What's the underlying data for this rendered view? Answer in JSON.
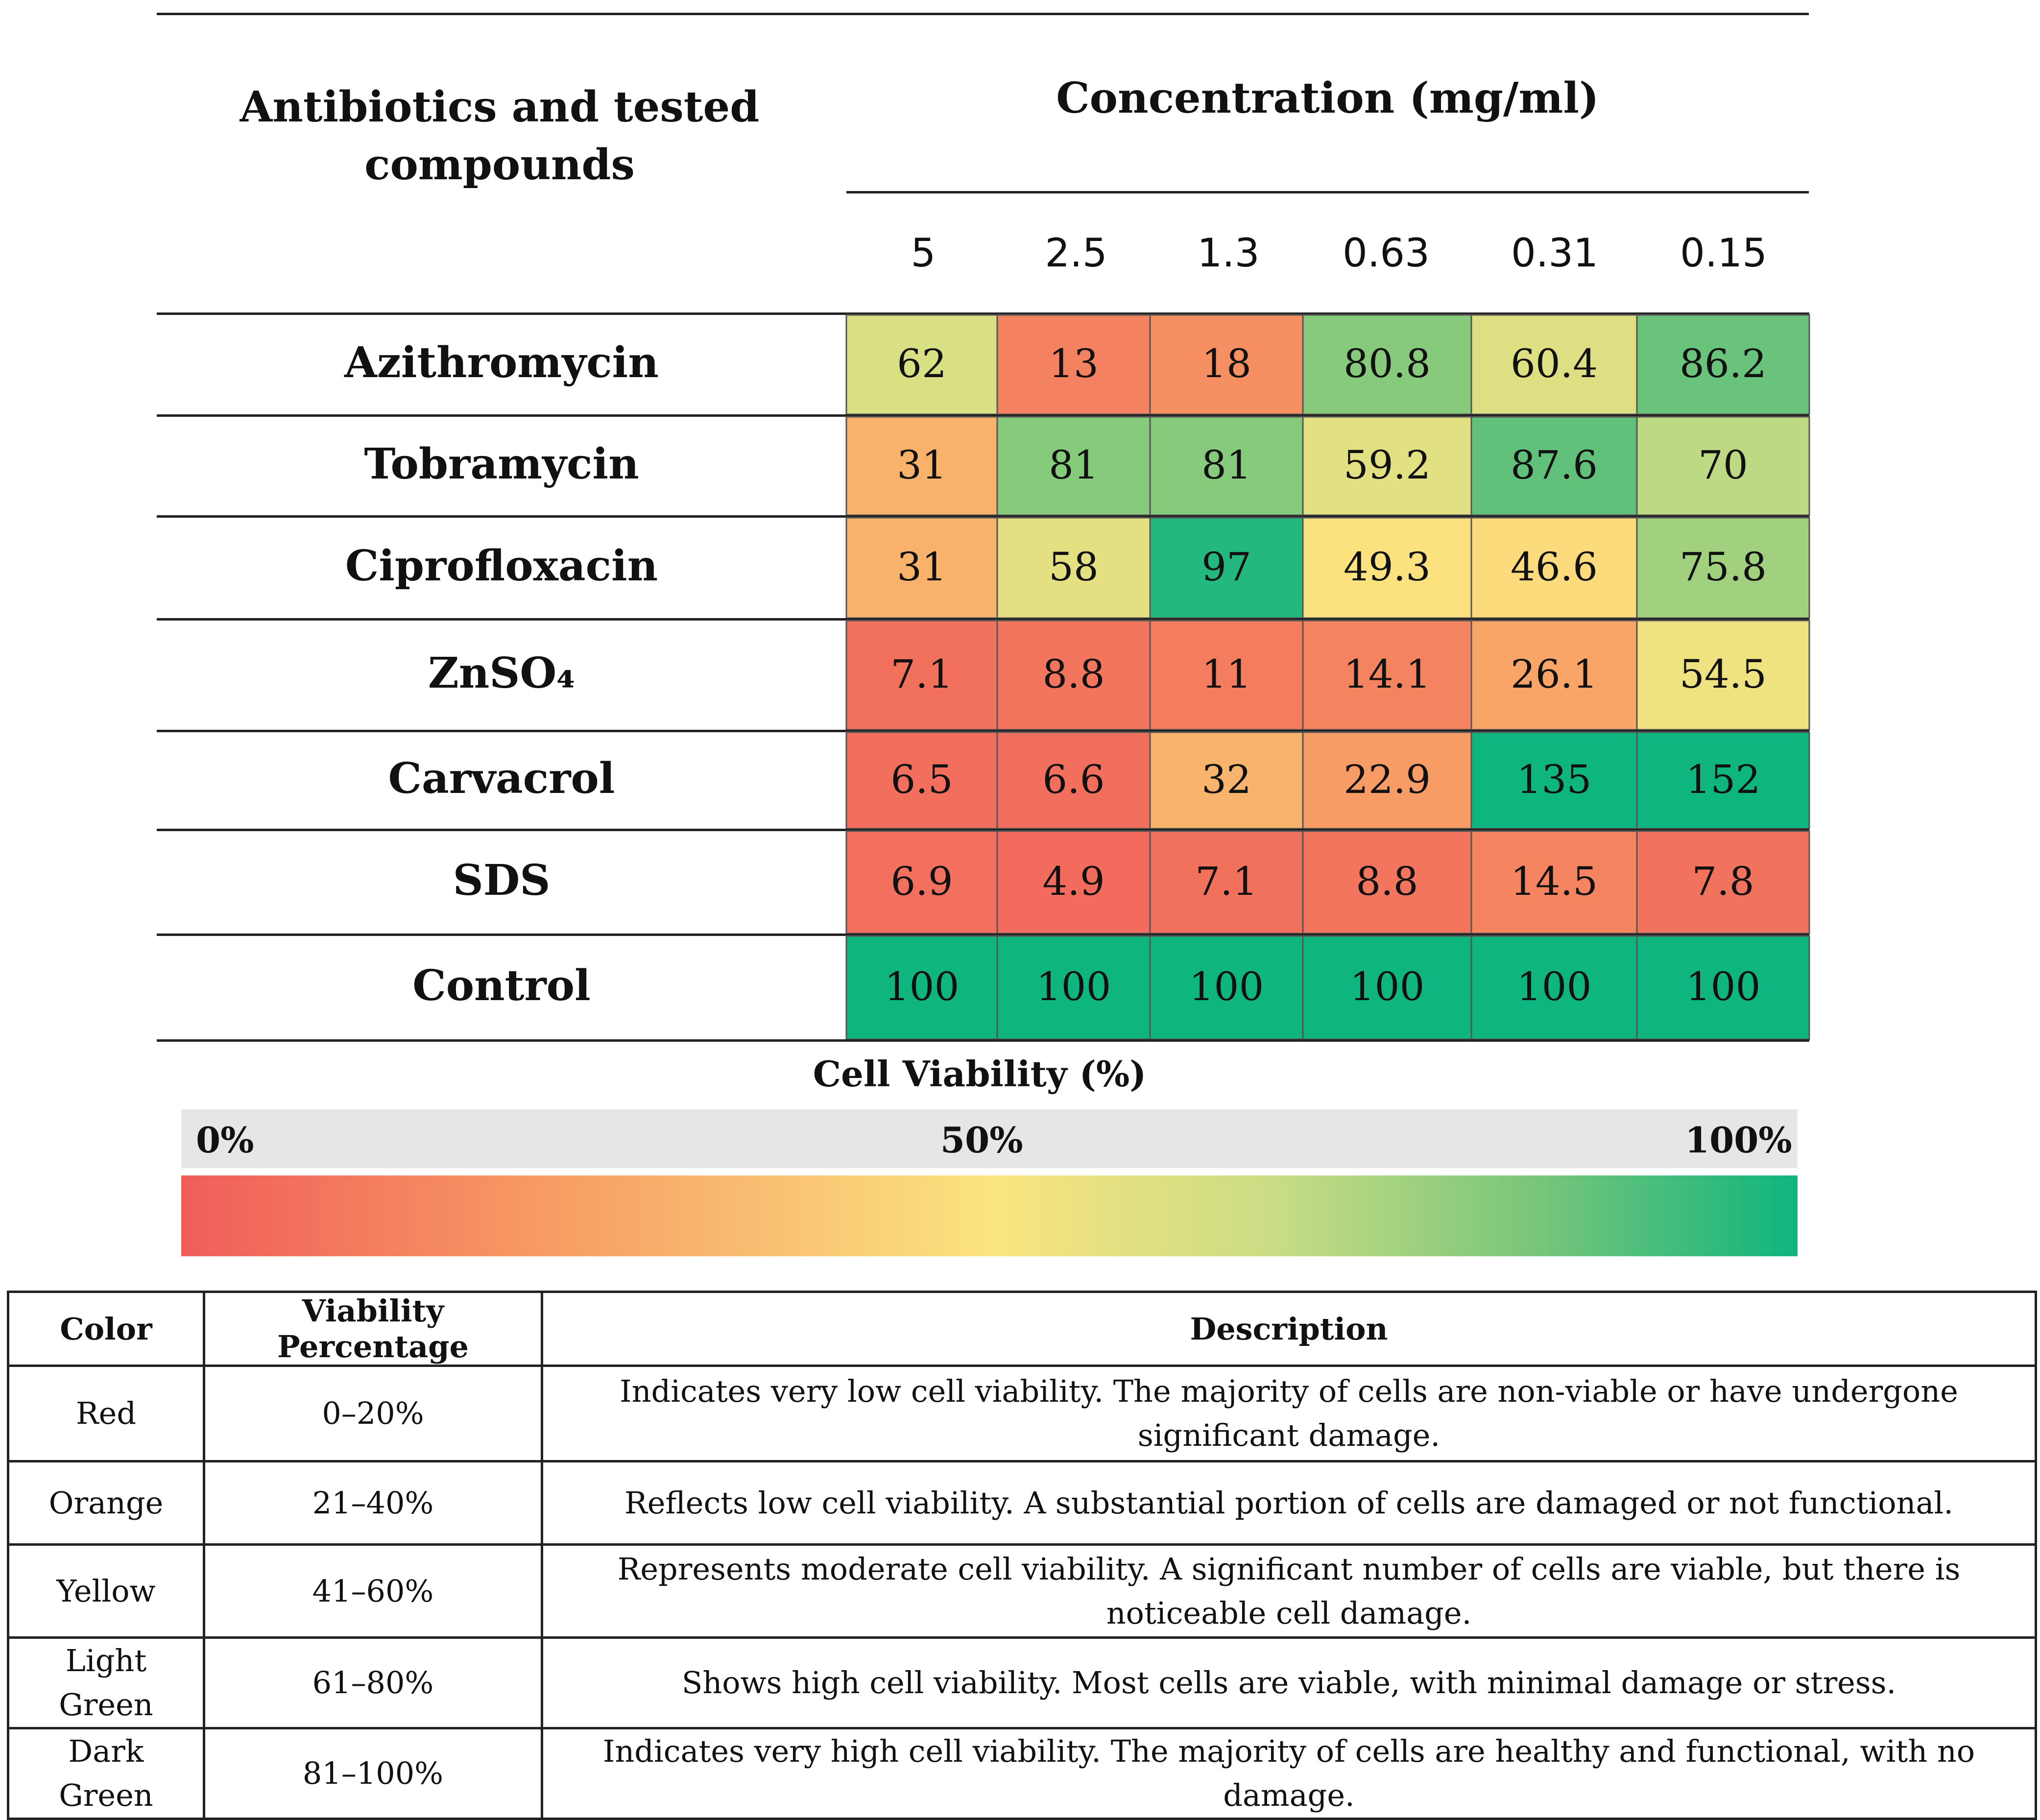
{
  "chart_data": {
    "type": "heatmap",
    "row_header": "Antibiotics and tested compounds",
    "col_header": "Concentration (mg/ml)",
    "columns": [
      "5",
      "2.5",
      "1.3",
      "0.63",
      "0.31",
      "0.15"
    ],
    "rows": [
      {
        "name": "Azithromycin",
        "values": [
          "62",
          "13",
          "18",
          "80.8",
          "60.4",
          "86.2"
        ]
      },
      {
        "name": "Tobramycin",
        "values": [
          "31",
          "81",
          "81",
          "59.2",
          "87.6",
          "70"
        ]
      },
      {
        "name": "Ciprofloxacin",
        "values": [
          "31",
          "58",
          "97",
          "49.3",
          "46.6",
          "75.8"
        ]
      },
      {
        "name": "ZnSO₄",
        "values": [
          "7.1",
          "8.8",
          "11",
          "14.1",
          "26.1",
          "54.5"
        ]
      },
      {
        "name": "Carvacrol",
        "values": [
          "6.5",
          "6.6",
          "32",
          "22.9",
          "135",
          "152"
        ]
      },
      {
        "name": "SDS",
        "values": [
          "6.9",
          "4.9",
          "7.1",
          "8.8",
          "14.5",
          "7.8"
        ]
      },
      {
        "name": "Control",
        "values": [
          "100",
          "100",
          "100",
          "100",
          "100",
          "100"
        ]
      }
    ],
    "colorbar": {
      "title": "Cell Viability (%)",
      "ticks": [
        "0%",
        "50%",
        "100%"
      ],
      "range": [
        0,
        100
      ]
    },
    "colors": {
      "red": "#f05d5a",
      "orange": "#f79a63",
      "yellow": "#fbe480",
      "light_green": "#c8dc84",
      "green": "#72c47a",
      "dark_green": "#0fb57e"
    }
  },
  "legend_table": {
    "headers": [
      "Color",
      "Viability Percentage",
      "Description"
    ],
    "rows": [
      {
        "color": "Red",
        "range": "0–20%",
        "description": "Indicates very low cell viability. The majority of cells are non-viable or have undergone significant damage."
      },
      {
        "color": "Orange",
        "range": "21–40%",
        "description": "Reflects low cell viability. A substantial portion of cells are damaged or not functional."
      },
      {
        "color": "Yellow",
        "range": "41–60%",
        "description": "Represents moderate cell viability. A significant number of cells are viable, but there is noticeable cell damage."
      },
      {
        "color": "Light Green",
        "range": "61–80%",
        "description": "Shows high cell viability. Most cells are viable, with minimal damage or stress."
      },
      {
        "color": "Dark Green",
        "range": "81–100%",
        "description": "Indicates very high cell viability. The majority of cells are healthy and functional, with no damage."
      }
    ]
  }
}
